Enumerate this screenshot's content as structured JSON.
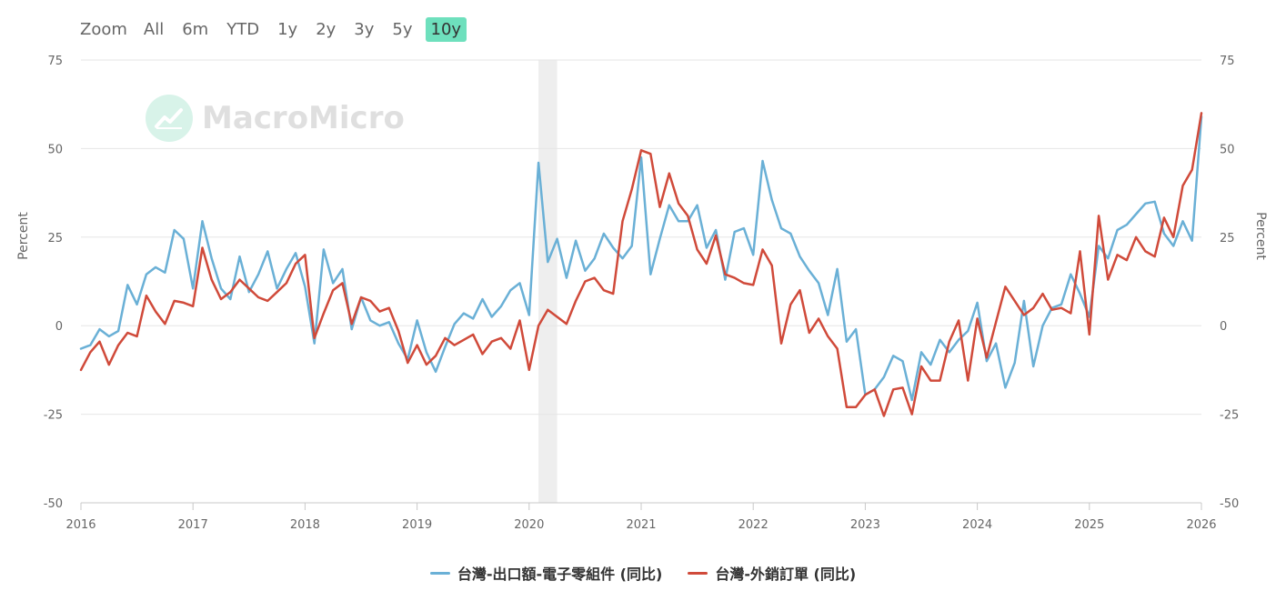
{
  "zoom": {
    "label": "Zoom",
    "buttons": [
      "All",
      "6m",
      "YTD",
      "1y",
      "2y",
      "3y",
      "5y",
      "10y"
    ],
    "active": "10y",
    "active_color": "#6ee0bd"
  },
  "watermark": {
    "brand": "MacroMicro",
    "icon": "chart-trend-icon"
  },
  "chart_data": {
    "type": "line",
    "title": "",
    "ylabel": "Percent",
    "ylabel_right": "Percent",
    "ylim": [
      -50,
      75
    ],
    "yticks": [
      -50,
      -25,
      0,
      25,
      50,
      75
    ],
    "xlim": [
      "2016-01",
      "2026-01"
    ],
    "xticks": [
      "2016",
      "2017",
      "2018",
      "2019",
      "2020",
      "2021",
      "2022",
      "2023",
      "2024",
      "2025",
      "2026"
    ],
    "grid": true,
    "legend_position": "bottom",
    "shaded_region": {
      "start": "2020-02",
      "end": "2020-04"
    },
    "series": [
      {
        "name": "台灣-出口額-電子零組件 (同比)",
        "color": "#6ab0d6",
        "x": [
          "2016-01",
          "2016-02",
          "2016-03",
          "2016-04",
          "2016-05",
          "2016-06",
          "2016-07",
          "2016-08",
          "2016-09",
          "2016-10",
          "2016-11",
          "2016-12",
          "2017-01",
          "2017-02",
          "2017-03",
          "2017-04",
          "2017-05",
          "2017-06",
          "2017-07",
          "2017-08",
          "2017-09",
          "2017-10",
          "2017-11",
          "2017-12",
          "2018-01",
          "2018-02",
          "2018-03",
          "2018-04",
          "2018-05",
          "2018-06",
          "2018-07",
          "2018-08",
          "2018-09",
          "2018-10",
          "2018-11",
          "2018-12",
          "2019-01",
          "2019-02",
          "2019-03",
          "2019-04",
          "2019-05",
          "2019-06",
          "2019-07",
          "2019-08",
          "2019-09",
          "2019-10",
          "2019-11",
          "2019-12",
          "2020-01",
          "2020-02",
          "2020-03",
          "2020-04",
          "2020-05",
          "2020-06",
          "2020-07",
          "2020-08",
          "2020-09",
          "2020-10",
          "2020-11",
          "2020-12",
          "2021-01",
          "2021-02",
          "2021-03",
          "2021-04",
          "2021-05",
          "2021-06",
          "2021-07",
          "2021-08",
          "2021-09",
          "2021-10",
          "2021-11",
          "2021-12",
          "2022-01",
          "2022-02",
          "2022-03",
          "2022-04",
          "2022-05",
          "2022-06",
          "2022-07",
          "2022-08",
          "2022-09",
          "2022-10",
          "2022-11",
          "2022-12",
          "2023-01",
          "2023-02",
          "2023-03",
          "2023-04",
          "2023-05",
          "2023-06",
          "2023-07",
          "2023-08",
          "2023-09",
          "2023-10",
          "2023-11",
          "2023-12",
          "2024-01",
          "2024-02",
          "2024-03",
          "2024-04",
          "2024-05",
          "2024-06",
          "2024-07",
          "2024-08",
          "2024-09",
          "2024-10",
          "2024-11",
          "2024-12",
          "2025-01",
          "2025-02",
          "2025-03",
          "2025-04",
          "2025-05",
          "2025-06",
          "2025-07",
          "2025-08",
          "2025-09",
          "2025-10",
          "2025-11",
          "2025-12",
          "2026-01"
        ],
        "values": [
          -6.5,
          -5.5,
          -1,
          -3,
          -1.5,
          11.5,
          6,
          14.5,
          16.5,
          15,
          27,
          24.5,
          10.5,
          29.5,
          19,
          10.5,
          7.5,
          19.5,
          9.5,
          14.5,
          21,
          10.5,
          16,
          20.5,
          11,
          -5,
          21.5,
          12,
          16,
          -1,
          8,
          1.5,
          0,
          1,
          -5,
          -9.5,
          1.5,
          -7.5,
          -13,
          -6,
          0.5,
          3.5,
          2,
          7.5,
          2.5,
          5.5,
          10,
          12,
          3,
          46,
          18,
          24.5,
          13.5,
          24,
          15.5,
          19,
          26,
          22,
          19,
          22.5,
          47.5,
          14.5,
          24.5,
          34,
          29.5,
          29.5,
          34,
          22,
          27,
          13,
          26.5,
          27.5,
          20,
          46.5,
          35.5,
          27.5,
          26,
          19.5,
          15.5,
          12,
          3,
          16,
          -4.5,
          -1,
          -19.5,
          -18,
          -14.5,
          -8.5,
          -10,
          -21,
          -7.5,
          -11,
          -4,
          -7.5,
          -4,
          -1.5,
          6.5,
          -10,
          -5,
          -17.5,
          -10.5,
          7,
          -11.5,
          0,
          5,
          6,
          14.5,
          9,
          2.5,
          22.5,
          19,
          27,
          28.5,
          31.5,
          34.5,
          35,
          26,
          22.5,
          29.5,
          24,
          59
        ]
      },
      {
        "name": "台灣-外銷訂單 (同比)",
        "color": "#d04a3a",
        "x": [
          "2016-01",
          "2016-02",
          "2016-03",
          "2016-04",
          "2016-05",
          "2016-06",
          "2016-07",
          "2016-08",
          "2016-09",
          "2016-10",
          "2016-11",
          "2016-12",
          "2017-01",
          "2017-02",
          "2017-03",
          "2017-04",
          "2017-05",
          "2017-06",
          "2017-07",
          "2017-08",
          "2017-09",
          "2017-10",
          "2017-11",
          "2017-12",
          "2018-01",
          "2018-02",
          "2018-03",
          "2018-04",
          "2018-05",
          "2018-06",
          "2018-07",
          "2018-08",
          "2018-09",
          "2018-10",
          "2018-11",
          "2018-12",
          "2019-01",
          "2019-02",
          "2019-03",
          "2019-04",
          "2019-05",
          "2019-06",
          "2019-07",
          "2019-08",
          "2019-09",
          "2019-10",
          "2019-11",
          "2019-12",
          "2020-01",
          "2020-02",
          "2020-03",
          "2020-04",
          "2020-05",
          "2020-06",
          "2020-07",
          "2020-08",
          "2020-09",
          "2020-10",
          "2020-11",
          "2020-12",
          "2021-01",
          "2021-02",
          "2021-03",
          "2021-04",
          "2021-05",
          "2021-06",
          "2021-07",
          "2021-08",
          "2021-09",
          "2021-10",
          "2021-11",
          "2021-12",
          "2022-01",
          "2022-02",
          "2022-03",
          "2022-04",
          "2022-05",
          "2022-06",
          "2022-07",
          "2022-08",
          "2022-09",
          "2022-10",
          "2022-11",
          "2022-12",
          "2023-01",
          "2023-02",
          "2023-03",
          "2023-04",
          "2023-05",
          "2023-06",
          "2023-07",
          "2023-08",
          "2023-09",
          "2023-10",
          "2023-11",
          "2023-12",
          "2024-01",
          "2024-02",
          "2024-03",
          "2024-04",
          "2024-05",
          "2024-06",
          "2024-07",
          "2024-08",
          "2024-09",
          "2024-10",
          "2024-11",
          "2024-12",
          "2025-01",
          "2025-02",
          "2025-03",
          "2025-04",
          "2025-05",
          "2025-06",
          "2025-07",
          "2025-08",
          "2025-09",
          "2025-10",
          "2025-11",
          "2025-12",
          "2026-01"
        ],
        "values": [
          -12.5,
          -7.5,
          -4.5,
          -11,
          -5.5,
          -2,
          -3,
          8.5,
          4,
          0.5,
          7,
          6.5,
          5.5,
          22,
          13,
          7.5,
          9.5,
          13,
          10.5,
          8,
          7,
          9.5,
          12,
          17.5,
          20,
          -3.5,
          3.5,
          10,
          12,
          0.5,
          8,
          7,
          4,
          5,
          -1.5,
          -10.5,
          -5.5,
          -11,
          -8.5,
          -3.5,
          -5.5,
          -4,
          -2.5,
          -8,
          -4.5,
          -3.5,
          -6.5,
          1.5,
          -12.5,
          0,
          4.5,
          2.5,
          0.5,
          7,
          12.5,
          13.5,
          10,
          9,
          29.5,
          38.5,
          49.5,
          48.5,
          33.5,
          43,
          34.5,
          31,
          21.5,
          17.5,
          25.5,
          14.5,
          13.5,
          12,
          11.5,
          21.5,
          17,
          -5,
          6,
          10,
          -2,
          2,
          -3,
          -6.5,
          -23,
          -23,
          -19.5,
          -18,
          -25.5,
          -18,
          -17.5,
          -25,
          -11.5,
          -15.5,
          -15.5,
          -4.5,
          1.5,
          -15.5,
          2,
          -9,
          1,
          11,
          7,
          3,
          5,
          9,
          4.5,
          5,
          3.5,
          21,
          -2.5,
          31,
          13,
          20,
          18.5,
          25,
          21,
          19.5,
          30.5,
          25,
          39.5,
          44,
          60
        ]
      }
    ]
  },
  "legend": [
    {
      "label": "台灣-出口額-電子零組件 (同比)",
      "color": "#6ab0d6"
    },
    {
      "label": "台灣-外銷訂單 (同比)",
      "color": "#d04a3a"
    }
  ]
}
